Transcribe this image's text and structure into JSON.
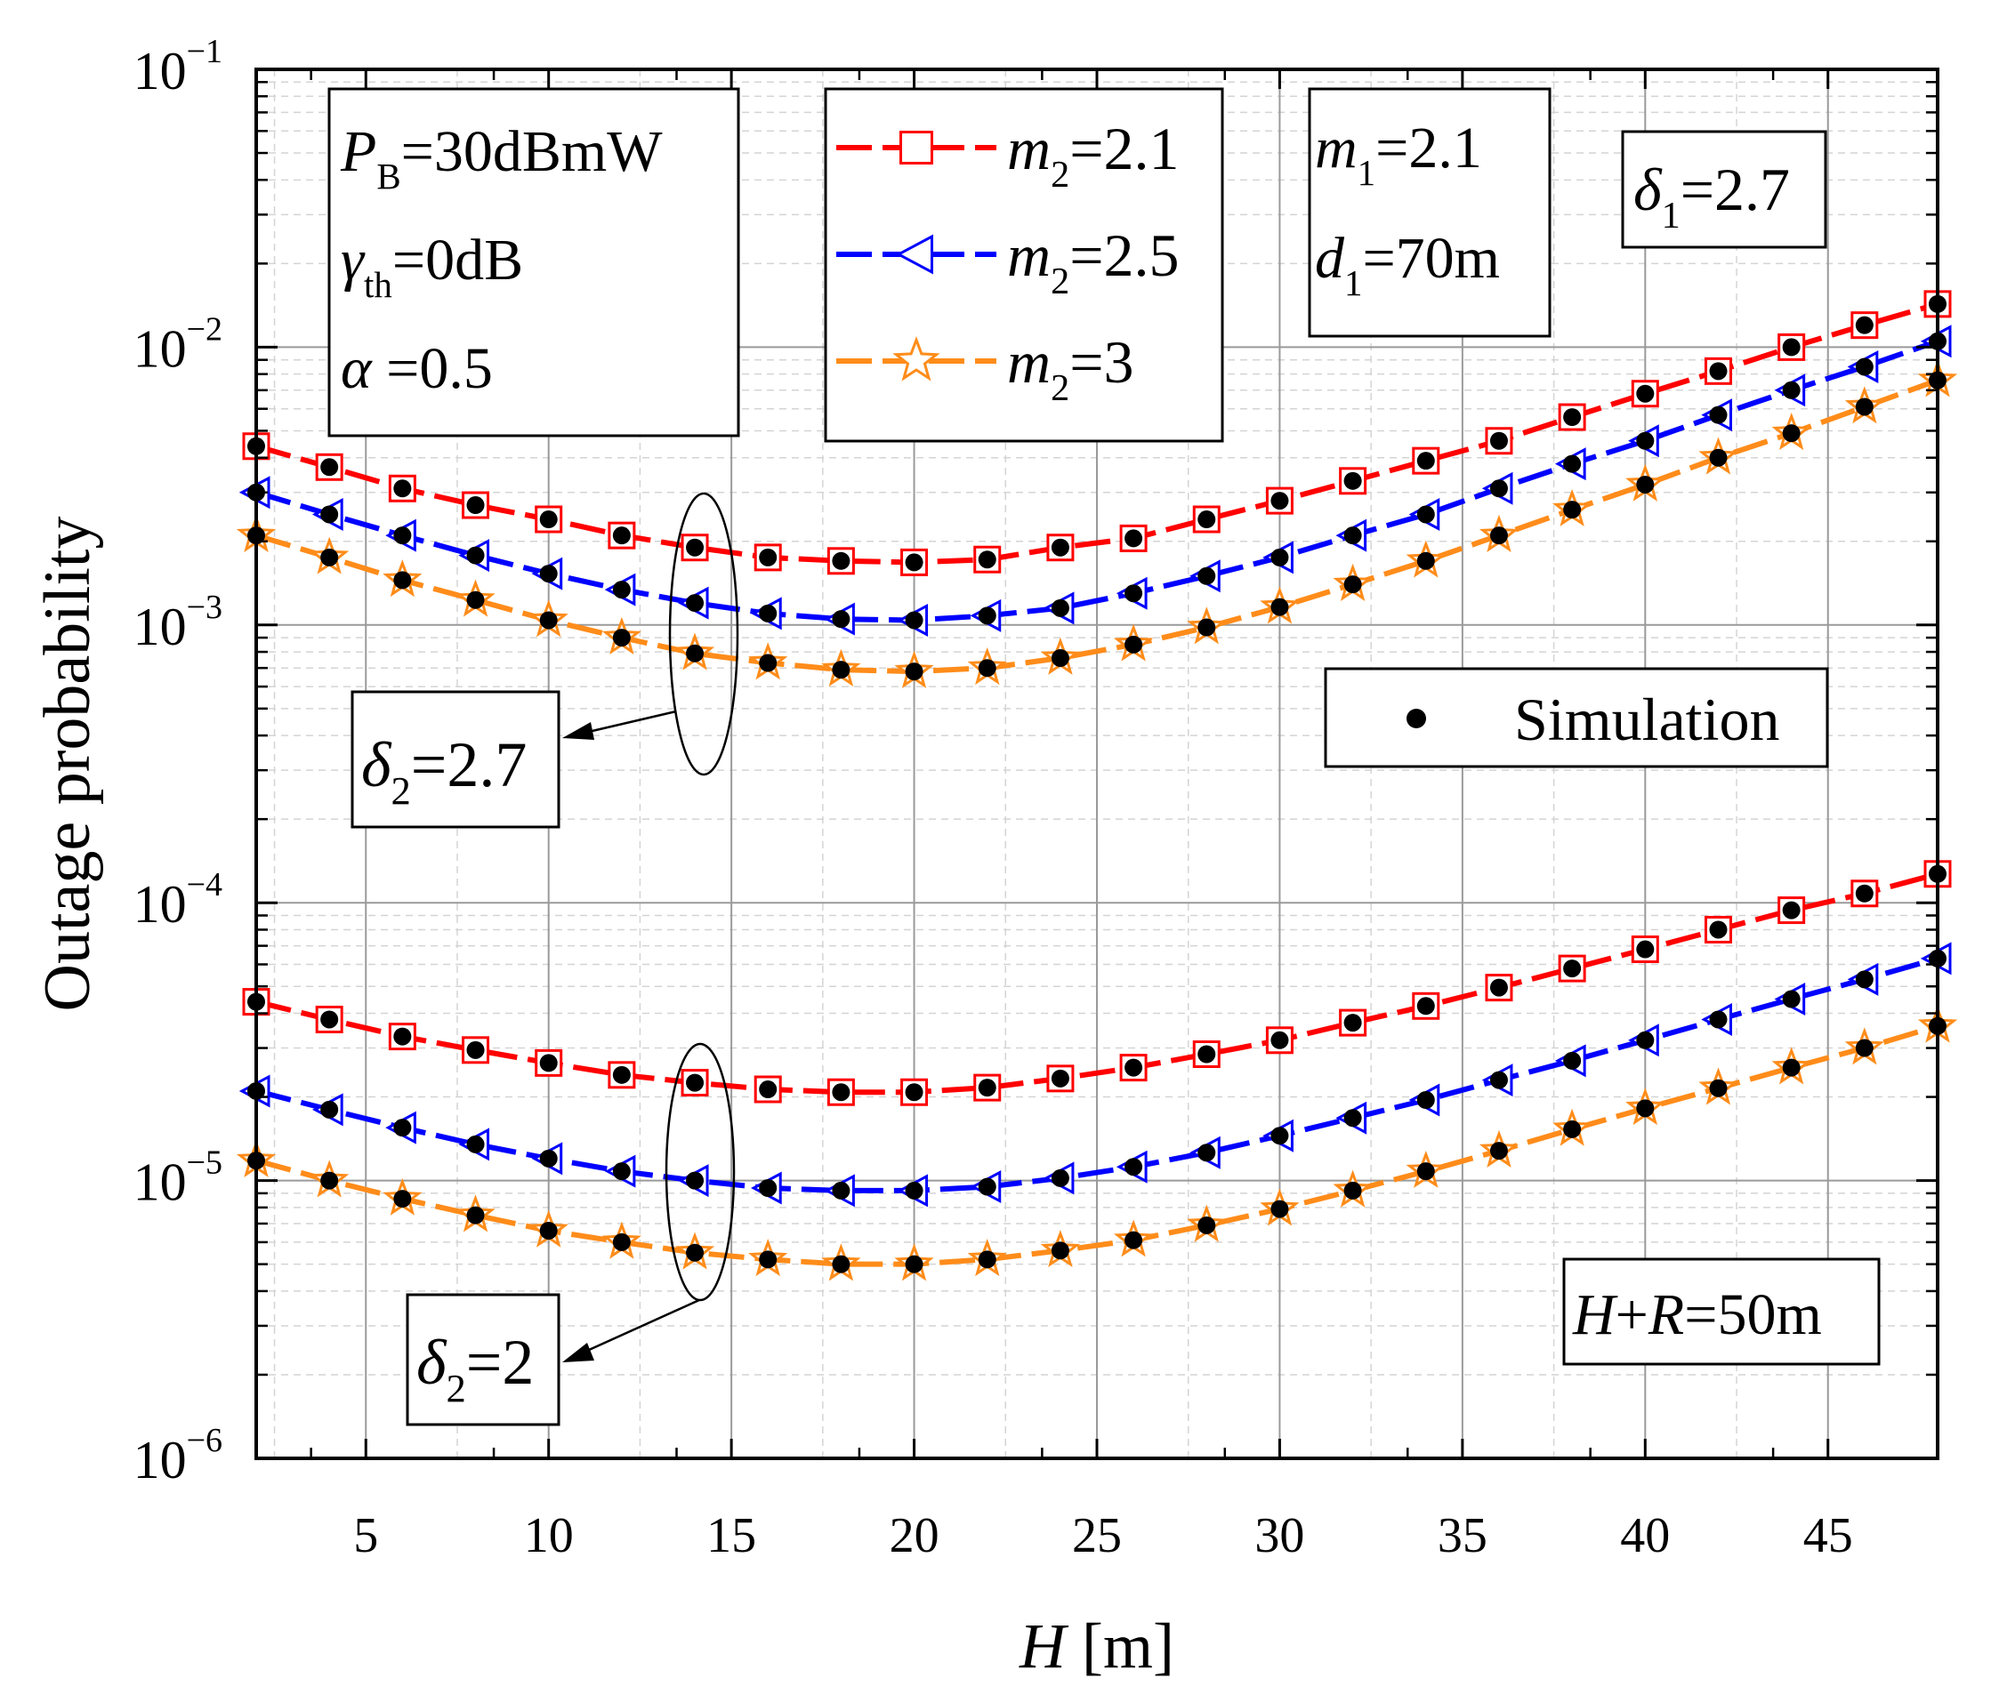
{
  "chart_data": {
    "type": "line",
    "x_scale": "linear",
    "y_scale": "log",
    "xlabel": {
      "var": "H",
      "unit": " [m]"
    },
    "ylabel": "Outage probability",
    "xlim": [
      2,
      48
    ],
    "ylim": [
      1e-06,
      0.1
    ],
    "x_ticks": [
      5,
      10,
      15,
      20,
      25,
      30,
      35,
      40,
      45
    ],
    "y_ticks": [
      {
        "value": 0.1,
        "base": "10",
        "exp": "−1"
      },
      {
        "value": 0.01,
        "base": "10",
        "exp": "−2"
      },
      {
        "value": 0.001,
        "base": "10",
        "exp": "−3"
      },
      {
        "value": 0.0001,
        "base": "10",
        "exp": "−4"
      },
      {
        "value": 1e-05,
        "base": "10",
        "exp": "−5"
      },
      {
        "value": 1e-06,
        "base": "10",
        "exp": "−6"
      }
    ],
    "grid": true,
    "x": [
      2,
      4,
      6,
      8,
      10,
      12,
      14,
      16,
      18,
      20,
      22,
      24,
      26,
      28,
      30,
      32,
      34,
      36,
      38,
      40,
      42,
      44,
      46,
      48
    ],
    "series": [
      {
        "name": "m2=2.1",
        "group": "delta2=2.7",
        "color": "#ff0000",
        "marker": "square",
        "values": [
          0.0044,
          0.0037,
          0.0031,
          0.0027,
          0.0024,
          0.0021,
          0.0019,
          0.00175,
          0.0017,
          0.00168,
          0.00172,
          0.0019,
          0.00205,
          0.0024,
          0.0028,
          0.0033,
          0.0039,
          0.0046,
          0.0056,
          0.0068,
          0.0082,
          0.01,
          0.012,
          0.0143
        ]
      },
      {
        "name": "m2=2.5",
        "group": "delta2=2.7",
        "color": "#0000ff",
        "marker": "triangle-left",
        "values": [
          0.003,
          0.0025,
          0.0021,
          0.00178,
          0.00153,
          0.00134,
          0.0012,
          0.0011,
          0.00105,
          0.00104,
          0.00108,
          0.00115,
          0.0013,
          0.0015,
          0.00175,
          0.0021,
          0.0025,
          0.0031,
          0.0038,
          0.0046,
          0.0057,
          0.007,
          0.0085,
          0.0105
        ]
      },
      {
        "name": "m2=3",
        "group": "delta2=2.7",
        "color": "#ff8c1a",
        "marker": "star",
        "values": [
          0.0021,
          0.00175,
          0.00145,
          0.00123,
          0.00104,
          0.0009,
          0.00079,
          0.00073,
          0.00069,
          0.00068,
          0.0007,
          0.00076,
          0.00085,
          0.00098,
          0.00116,
          0.0014,
          0.0017,
          0.0021,
          0.0026,
          0.0032,
          0.004,
          0.0049,
          0.0061,
          0.0076
        ]
      },
      {
        "name": "m2=2.1",
        "group": "delta2=2",
        "color": "#ff0000",
        "marker": "square",
        "values": [
          4.4e-05,
          3.8e-05,
          3.3e-05,
          2.95e-05,
          2.65e-05,
          2.4e-05,
          2.25e-05,
          2.13e-05,
          2.08e-05,
          2.08e-05,
          2.16e-05,
          2.33e-05,
          2.55e-05,
          2.85e-05,
          3.2e-05,
          3.7e-05,
          4.25e-05,
          4.95e-05,
          5.8e-05,
          6.8e-05,
          8e-05,
          9.4e-05,
          0.000108,
          0.000127
        ]
      },
      {
        "name": "m2=2.5",
        "group": "delta2=2",
        "color": "#0000ff",
        "marker": "triangle-left",
        "values": [
          2.1e-05,
          1.8e-05,
          1.55e-05,
          1.35e-05,
          1.2e-05,
          1.08e-05,
          1e-05,
          9.4e-06,
          9.2e-06,
          9.2e-06,
          9.5e-06,
          1.02e-05,
          1.12e-05,
          1.26e-05,
          1.45e-05,
          1.68e-05,
          1.95e-05,
          2.3e-05,
          2.7e-05,
          3.2e-05,
          3.8e-05,
          4.5e-05,
          5.3e-05,
          6.3e-05
        ]
      },
      {
        "name": "m2=3",
        "group": "delta2=2",
        "color": "#ff8c1a",
        "marker": "star",
        "values": [
          1.18e-05,
          1e-05,
          8.6e-06,
          7.5e-06,
          6.6e-06,
          6e-06,
          5.5e-06,
          5.2e-06,
          5e-06,
          5e-06,
          5.2e-06,
          5.6e-06,
          6.1e-06,
          6.9e-06,
          7.9e-06,
          9.2e-06,
          1.08e-05,
          1.28e-05,
          1.53e-05,
          1.82e-05,
          2.15e-05,
          2.55e-05,
          3e-05,
          3.6e-05
        ]
      }
    ],
    "legend": {
      "placement": "top-center",
      "entries": [
        {
          "var": "m",
          "sub": "2",
          "value": "=2.1",
          "color": "#ff0000",
          "marker": "square"
        },
        {
          "var": "m",
          "sub": "2",
          "value": "=2.5",
          "color": "#0000ff",
          "marker": "triangle-left"
        },
        {
          "var": "m",
          "sub": "2",
          "value": "=3",
          "color": "#ff8c1a",
          "marker": "star"
        }
      ]
    },
    "simulation_legend": {
      "label": "Simulation",
      "placement": "middle-right"
    },
    "annotations": {
      "params": [
        {
          "var": "P",
          "sub": "B",
          "value": "=30dBmW"
        },
        {
          "var": "γ",
          "sub": "th",
          "value": "=0dB"
        },
        {
          "var": "α",
          "sub": "",
          "value": " =0.5"
        }
      ],
      "m1_d1": [
        {
          "var": "m",
          "sub": "1",
          "value": "=2.1"
        },
        {
          "var": "d",
          "sub": "1",
          "value": "=70m"
        }
      ],
      "delta1": {
        "var": "δ",
        "sub": "1",
        "value": "=2.7"
      },
      "delta2_upper": {
        "var": "δ",
        "sub": "2",
        "value": "=2.7"
      },
      "delta2_lower": {
        "var": "δ",
        "sub": "2",
        "value": "=2"
      },
      "hr": {
        "var1": "H",
        "plus": "+",
        "var2": "R",
        "value": "=50m"
      }
    }
  }
}
